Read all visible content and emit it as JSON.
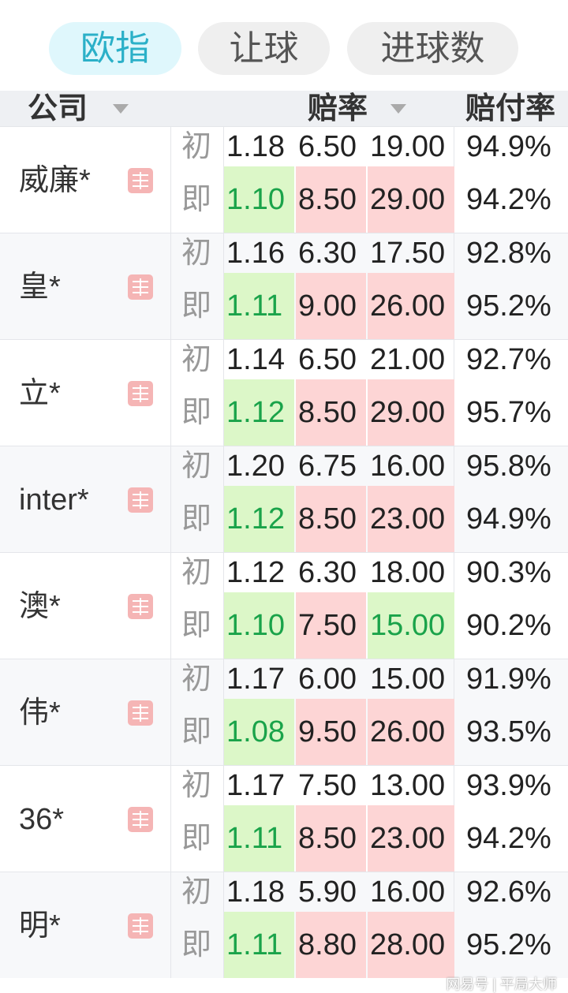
{
  "tabs": [
    {
      "label": "欧指",
      "active": true
    },
    {
      "label": "让球",
      "active": false
    },
    {
      "label": "进球数",
      "active": false
    }
  ],
  "header": {
    "company": "公司",
    "odds": "赔率",
    "payout": "赔付率"
  },
  "labels": {
    "initial": "初",
    "live": "即"
  },
  "colors": {
    "up_bg": "#fdd5d5",
    "down_bg": "#dcf7c8",
    "down_text": "#1aa34a",
    "accent": "#2bb0c8"
  },
  "rows": [
    {
      "company": "威廉*",
      "initial": [
        "1.18",
        "6.50",
        "19.00",
        "94.9%"
      ],
      "live": [
        "1.10",
        "8.50",
        "29.00",
        "94.2%"
      ],
      "trend": [
        "down",
        "up",
        "up"
      ]
    },
    {
      "company": "皇*",
      "initial": [
        "1.16",
        "6.30",
        "17.50",
        "92.8%"
      ],
      "live": [
        "1.11",
        "9.00",
        "26.00",
        "95.2%"
      ],
      "trend": [
        "down",
        "up",
        "up"
      ]
    },
    {
      "company": "立*",
      "initial": [
        "1.14",
        "6.50",
        "21.00",
        "92.7%"
      ],
      "live": [
        "1.12",
        "8.50",
        "29.00",
        "95.7%"
      ],
      "trend": [
        "down",
        "up",
        "up"
      ]
    },
    {
      "company": "inter*",
      "initial": [
        "1.20",
        "6.75",
        "16.00",
        "95.8%"
      ],
      "live": [
        "1.12",
        "8.50",
        "23.00",
        "94.9%"
      ],
      "trend": [
        "down",
        "up",
        "up"
      ]
    },
    {
      "company": "澳*",
      "initial": [
        "1.12",
        "6.30",
        "18.00",
        "90.3%"
      ],
      "live": [
        "1.10",
        "7.50",
        "15.00",
        "90.2%"
      ],
      "trend": [
        "down",
        "up",
        "down"
      ]
    },
    {
      "company": "伟*",
      "initial": [
        "1.17",
        "6.00",
        "15.00",
        "91.9%"
      ],
      "live": [
        "1.08",
        "9.50",
        "26.00",
        "93.5%"
      ],
      "trend": [
        "down",
        "up",
        "up"
      ]
    },
    {
      "company": "36*",
      "initial": [
        "1.17",
        "7.50",
        "13.00",
        "93.9%"
      ],
      "live": [
        "1.11",
        "8.50",
        "23.00",
        "94.2%"
      ],
      "trend": [
        "down",
        "up",
        "up"
      ]
    },
    {
      "company": "明*",
      "initial": [
        "1.18",
        "5.90",
        "16.00",
        "92.6%"
      ],
      "live": [
        "1.11",
        "8.80",
        "28.00",
        "95.2%"
      ],
      "trend": [
        "down",
        "up",
        "up"
      ]
    }
  ],
  "watermark": "网易号 | 平局大师"
}
